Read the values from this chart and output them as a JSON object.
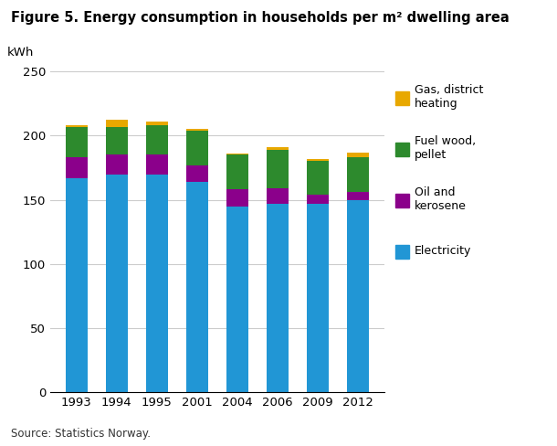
{
  "title": "Figure 5. Energy consumption in households per m² dwelling area",
  "ylabel": "kWh",
  "source": "Source: Statistics Norway.",
  "years": [
    "1993",
    "1994",
    "1995",
    "2001",
    "2004",
    "2006",
    "2009",
    "2012"
  ],
  "electricity": [
    167,
    170,
    170,
    164,
    145,
    147,
    147,
    150
  ],
  "oil_kerosene": [
    16,
    15,
    15,
    13,
    13,
    12,
    7,
    6
  ],
  "fuel_wood": [
    24,
    22,
    23,
    27,
    27,
    30,
    26,
    27
  ],
  "gas_district": [
    1,
    5,
    3,
    1,
    1,
    2,
    2,
    4
  ],
  "colors": {
    "electricity": "#2196d5",
    "oil_kerosene": "#8B008B",
    "fuel_wood": "#2d8a2d",
    "gas_district": "#e8a800"
  },
  "ylim": [
    0,
    250
  ],
  "yticks": [
    0,
    50,
    100,
    150,
    200,
    250
  ],
  "background_color": "#ffffff",
  "grid_color": "#cccccc"
}
